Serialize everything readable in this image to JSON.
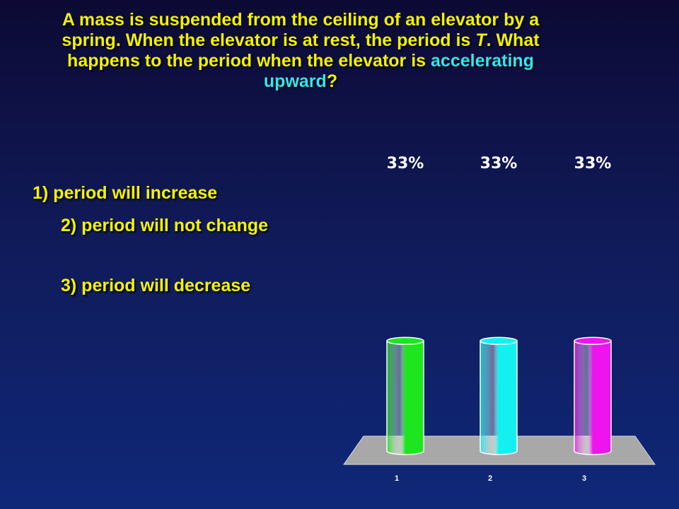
{
  "question": {
    "part1": "A  mass is suspended from the ceiling of an elevator by a spring.  When the elevator is at rest, the period is ",
    "part2": "T",
    "part3": ".  What happens to the period when the elevator is ",
    "highlight1": "accelerating upward",
    "part4": "?"
  },
  "options": [
    "1)  period will increase",
    "2)  period will not change",
    "3)  period will decrease"
  ],
  "colors": {
    "question_text": "#f2f200",
    "highlight": "#33e6f2",
    "bar1": "#1ee61e",
    "bar2": "#14f0f0",
    "bar3": "#ee14ee",
    "floor": "#a8a8a8"
  },
  "chart_data": {
    "type": "bar",
    "categories": [
      "1",
      "2",
      "3"
    ],
    "values": [
      33,
      33,
      33
    ],
    "value_labels": [
      "33%",
      "33%",
      "33%"
    ],
    "ylim": [
      0,
      100
    ],
    "xlabel": "",
    "ylabel": "",
    "grid": false,
    "legend": "none",
    "style": "3d-cylinder"
  }
}
